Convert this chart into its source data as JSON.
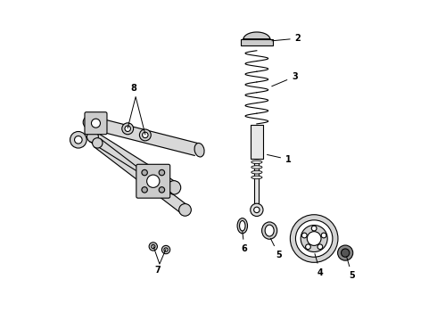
{
  "background_color": "#ffffff",
  "line_color": "#000000",
  "figure_width": 4.9,
  "figure_height": 3.6,
  "dpi": 100
}
